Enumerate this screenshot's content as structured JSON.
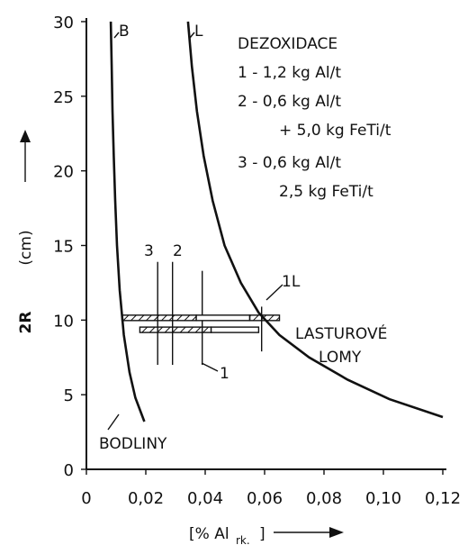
{
  "chart_data": {
    "type": "line",
    "xlabel": "[% Al",
    "xlabel_sub": "rk.",
    "xlabel_close": "]",
    "ylabel": "2R",
    "ylabel_unit": "(cm)",
    "xlim": [
      0,
      0.12
    ],
    "ylim": [
      0,
      30
    ],
    "x_ticks": [
      0,
      0.02,
      0.04,
      0.06,
      0.08,
      0.1,
      0.12
    ],
    "x_tick_labels": [
      "0",
      "0,02",
      "0,04",
      "0,06",
      "0,08",
      "0,10",
      "0,12"
    ],
    "y_ticks": [
      0,
      5,
      10,
      15,
      20,
      25,
      30
    ],
    "y_tick_labels": [
      "0",
      "5",
      "10",
      "15",
      "20",
      "25",
      "30"
    ],
    "series": [
      {
        "name": "B",
        "points": [
          [
            0.0082,
            30
          ],
          [
            0.0085,
            27
          ],
          [
            0.0088,
            24
          ],
          [
            0.0092,
            21
          ],
          [
            0.0097,
            18
          ],
          [
            0.0103,
            15
          ],
          [
            0.0112,
            12
          ],
          [
            0.0126,
            9
          ],
          [
            0.0145,
            6.5
          ],
          [
            0.0165,
            4.8
          ],
          [
            0.0195,
            3.2
          ]
        ]
      },
      {
        "name": "L",
        "points": [
          [
            0.0342,
            30
          ],
          [
            0.0355,
            27
          ],
          [
            0.0372,
            24
          ],
          [
            0.0395,
            21
          ],
          [
            0.0425,
            18
          ],
          [
            0.0465,
            15
          ],
          [
            0.052,
            12.5
          ],
          [
            0.058,
            10.5
          ],
          [
            0.065,
            9
          ],
          [
            0.075,
            7.5
          ],
          [
            0.088,
            6
          ],
          [
            0.102,
            4.7
          ],
          [
            0.12,
            3.5
          ]
        ]
      }
    ],
    "curve_labels": [
      "B",
      "L"
    ],
    "regions": [
      "BODLINY",
      "LASTUROVÉ",
      "LOMY"
    ],
    "legend": {
      "title": "DEZOXIDACE",
      "lines": [
        "1 - 1,2 kg Al/t",
        "2 - 0,6 kg Al/t",
        "+ 5,0 kg FeTi/t",
        "3 - 0,6 kg Al/t",
        "2,5 kg FeTi/t"
      ]
    },
    "marker_labels": [
      "3",
      "2",
      "1",
      "1L"
    ],
    "markers": [
      {
        "label": "3",
        "x": 0.024
      },
      {
        "label": "2",
        "x": 0.029
      },
      {
        "label": "1",
        "x": 0.039
      },
      {
        "label": "1L",
        "x": 0.059
      }
    ],
    "bars": [
      {
        "x0": 0.012,
        "x1": 0.037,
        "y": 10.15
      },
      {
        "x0": 0.037,
        "x1": 0.055,
        "y": 10.15
      },
      {
        "x0": 0.055,
        "x1": 0.065,
        "y": 10.15
      },
      {
        "x0": 0.018,
        "x1": 0.042,
        "y": 9.35
      },
      {
        "x0": 0.042,
        "x1": 0.058,
        "y": 9.35
      }
    ]
  }
}
